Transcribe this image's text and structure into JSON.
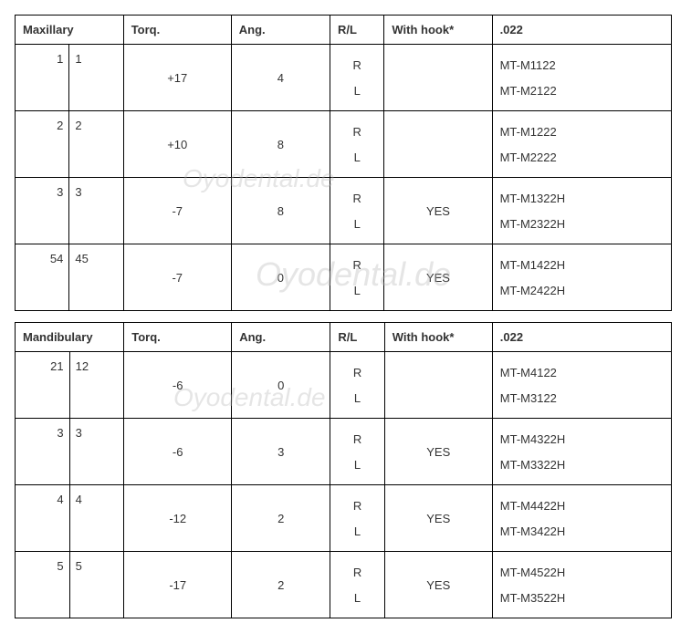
{
  "watermark_text": "Oyodental.de",
  "tables": [
    {
      "name": "Maxillary",
      "headers": {
        "name": "Maxillary",
        "torq": "Torq.",
        "ang": "Ang.",
        "rl": "R/L",
        "hook": "With hook*",
        "s022": ".022"
      },
      "rows": [
        {
          "nL": "1",
          "nR": "1",
          "torq": "+17",
          "ang": "4",
          "rl": [
            "R",
            "L"
          ],
          "hook": "",
          "s022": [
            "MT-M1122",
            "MT-M2122"
          ]
        },
        {
          "nL": "2",
          "nR": "2",
          "torq": "+10",
          "ang": "8",
          "rl": [
            "R",
            "L"
          ],
          "hook": "",
          "s022": [
            "MT-M1222",
            "MT-M2222"
          ]
        },
        {
          "nL": "3",
          "nR": "3",
          "torq": "-7",
          "ang": "8",
          "rl": [
            "R",
            "L"
          ],
          "hook": "YES",
          "s022": [
            "MT-M1322H",
            "MT-M2322H"
          ]
        },
        {
          "nL": "54",
          "nR": "45",
          "torq": "-7",
          "ang": "0",
          "rl": [
            "R",
            "L"
          ],
          "hook": "YES",
          "s022": [
            "MT-M1422H",
            "MT-M2422H"
          ]
        }
      ]
    },
    {
      "name": "Mandibulary",
      "headers": {
        "name": "Mandibulary",
        "torq": "Torq.",
        "ang": "Ang.",
        "rl": "R/L",
        "hook": "With hook*",
        "s022": ".022"
      },
      "rows": [
        {
          "nL": "21",
          "nR": "12",
          "torq": "-6",
          "ang": "0",
          "rl": [
            "R",
            "L"
          ],
          "hook": "",
          "s022": [
            "MT-M4122",
            "MT-M3122"
          ]
        },
        {
          "nL": "3",
          "nR": "3",
          "torq": "-6",
          "ang": "3",
          "rl": [
            "R",
            "L"
          ],
          "hook": "YES",
          "s022": [
            "MT-M4322H",
            "MT-M3322H"
          ]
        },
        {
          "nL": "4",
          "nR": "4",
          "torq": "-12",
          "ang": "2",
          "rl": [
            "R",
            "L"
          ],
          "hook": "YES",
          "s022": [
            "MT-M4422H",
            "MT-M3422H"
          ]
        },
        {
          "nL": "5",
          "nR": "5",
          "torq": "-17",
          "ang": "2",
          "rl": [
            "R",
            "L"
          ],
          "hook": "YES",
          "s022": [
            "MT-M4522H",
            "MT-M3522H"
          ]
        }
      ]
    }
  ]
}
